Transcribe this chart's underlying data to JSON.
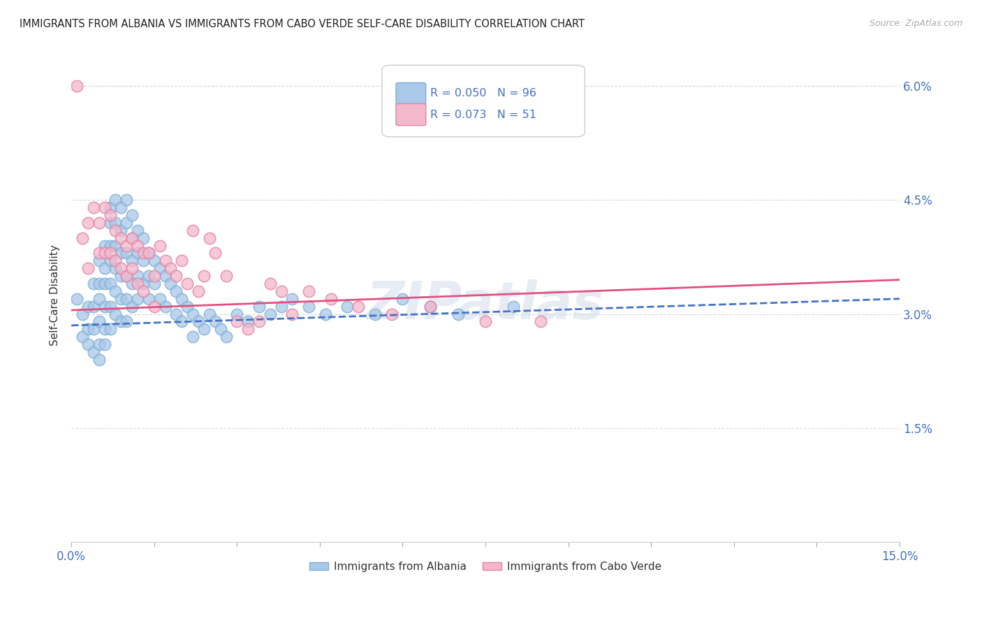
{
  "title": "IMMIGRANTS FROM ALBANIA VS IMMIGRANTS FROM CABO VERDE SELF-CARE DISABILITY CORRELATION CHART",
  "source": "Source: ZipAtlas.com",
  "ylabel": "Self-Care Disability",
  "xmin": 0.0,
  "xmax": 0.15,
  "ymin": 0.0,
  "ymax": 0.065,
  "albania_color": "#aac8e8",
  "albania_edge": "#7aafd4",
  "caboverde_color": "#f4b8cc",
  "caboverde_edge": "#e080a0",
  "albania_R": 0.05,
  "albania_N": 96,
  "caboverde_R": 0.073,
  "caboverde_N": 51,
  "albania_scatter_x": [
    0.001,
    0.002,
    0.002,
    0.003,
    0.003,
    0.003,
    0.004,
    0.004,
    0.004,
    0.004,
    0.005,
    0.005,
    0.005,
    0.005,
    0.005,
    0.005,
    0.006,
    0.006,
    0.006,
    0.006,
    0.006,
    0.006,
    0.007,
    0.007,
    0.007,
    0.007,
    0.007,
    0.007,
    0.007,
    0.008,
    0.008,
    0.008,
    0.008,
    0.008,
    0.008,
    0.009,
    0.009,
    0.009,
    0.009,
    0.009,
    0.009,
    0.01,
    0.01,
    0.01,
    0.01,
    0.01,
    0.01,
    0.011,
    0.011,
    0.011,
    0.011,
    0.011,
    0.012,
    0.012,
    0.012,
    0.012,
    0.013,
    0.013,
    0.013,
    0.014,
    0.014,
    0.014,
    0.015,
    0.015,
    0.016,
    0.016,
    0.017,
    0.017,
    0.018,
    0.019,
    0.019,
    0.02,
    0.02,
    0.021,
    0.022,
    0.022,
    0.023,
    0.024,
    0.025,
    0.026,
    0.027,
    0.028,
    0.03,
    0.032,
    0.034,
    0.036,
    0.038,
    0.04,
    0.043,
    0.046,
    0.05,
    0.055,
    0.06,
    0.065,
    0.07,
    0.08
  ],
  "albania_scatter_y": [
    0.032,
    0.03,
    0.027,
    0.031,
    0.028,
    0.026,
    0.034,
    0.031,
    0.028,
    0.025,
    0.037,
    0.034,
    0.032,
    0.029,
    0.026,
    0.024,
    0.039,
    0.036,
    0.034,
    0.031,
    0.028,
    0.026,
    0.044,
    0.042,
    0.039,
    0.037,
    0.034,
    0.031,
    0.028,
    0.045,
    0.042,
    0.039,
    0.036,
    0.033,
    0.03,
    0.044,
    0.041,
    0.038,
    0.035,
    0.032,
    0.029,
    0.045,
    0.042,
    0.038,
    0.035,
    0.032,
    0.029,
    0.043,
    0.04,
    0.037,
    0.034,
    0.031,
    0.041,
    0.038,
    0.035,
    0.032,
    0.04,
    0.037,
    0.034,
    0.038,
    0.035,
    0.032,
    0.037,
    0.034,
    0.036,
    0.032,
    0.035,
    0.031,
    0.034,
    0.033,
    0.03,
    0.032,
    0.029,
    0.031,
    0.03,
    0.027,
    0.029,
    0.028,
    0.03,
    0.029,
    0.028,
    0.027,
    0.03,
    0.029,
    0.031,
    0.03,
    0.031,
    0.032,
    0.031,
    0.03,
    0.031,
    0.03,
    0.032,
    0.031,
    0.03,
    0.031
  ],
  "caboverde_scatter_x": [
    0.001,
    0.002,
    0.003,
    0.003,
    0.004,
    0.005,
    0.005,
    0.006,
    0.006,
    0.007,
    0.007,
    0.008,
    0.008,
    0.009,
    0.009,
    0.01,
    0.01,
    0.011,
    0.011,
    0.012,
    0.012,
    0.013,
    0.013,
    0.014,
    0.015,
    0.015,
    0.016,
    0.017,
    0.018,
    0.019,
    0.02,
    0.021,
    0.022,
    0.023,
    0.024,
    0.025,
    0.026,
    0.028,
    0.03,
    0.032,
    0.034,
    0.036,
    0.038,
    0.04,
    0.043,
    0.047,
    0.052,
    0.058,
    0.065,
    0.075,
    0.085
  ],
  "caboverde_scatter_y": [
    0.06,
    0.04,
    0.042,
    0.036,
    0.044,
    0.042,
    0.038,
    0.044,
    0.038,
    0.043,
    0.038,
    0.041,
    0.037,
    0.04,
    0.036,
    0.039,
    0.035,
    0.04,
    0.036,
    0.039,
    0.034,
    0.038,
    0.033,
    0.038,
    0.035,
    0.031,
    0.039,
    0.037,
    0.036,
    0.035,
    0.037,
    0.034,
    0.041,
    0.033,
    0.035,
    0.04,
    0.038,
    0.035,
    0.029,
    0.028,
    0.029,
    0.034,
    0.033,
    0.03,
    0.033,
    0.032,
    0.031,
    0.03,
    0.031,
    0.029,
    0.029
  ],
  "watermark": "ZIPatlas",
  "grid_color": "#cccccc",
  "albania_line_color": "#4472c4",
  "caboverde_line_color": "#e05080",
  "tick_color": "#4472c4",
  "label_color": "#333333"
}
